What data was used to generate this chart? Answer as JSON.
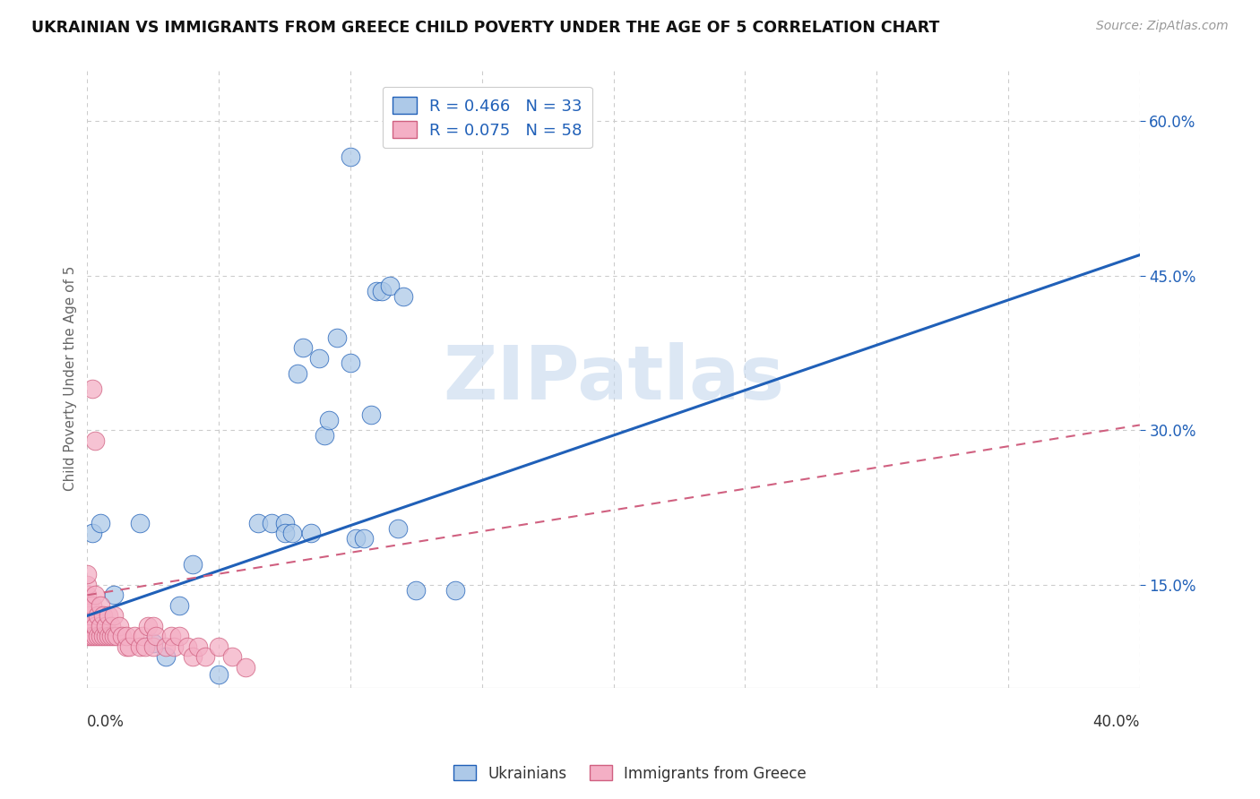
{
  "title": "UKRAINIAN VS IMMIGRANTS FROM GREECE CHILD POVERTY UNDER THE AGE OF 5 CORRELATION CHART",
  "source": "Source: ZipAtlas.com",
  "ylabel": "Child Poverty Under the Age of 5",
  "yaxis_ticks": [
    0.15,
    0.3,
    0.45,
    0.6
  ],
  "yaxis_labels": [
    "15.0%",
    "30.0%",
    "45.0%",
    "60.0%"
  ],
  "xaxis_ticks": [
    0.0,
    0.05,
    0.1,
    0.15,
    0.2,
    0.25,
    0.3,
    0.35,
    0.4
  ],
  "xmin": 0.0,
  "xmax": 0.4,
  "ymin": 0.05,
  "ymax": 0.65,
  "legend_entries": [
    {
      "label": "R = 0.466   N = 33",
      "color": "#a8c4e0"
    },
    {
      "label": "R = 0.075   N = 58",
      "color": "#f4b8c8"
    }
  ],
  "watermark": "ZIPatlas",
  "ukrainians_x": [
    0.03,
    0.05,
    0.065,
    0.07,
    0.075,
    0.075,
    0.078,
    0.08,
    0.082,
    0.085,
    0.088,
    0.09,
    0.092,
    0.095,
    0.1,
    0.102,
    0.105,
    0.108,
    0.11,
    0.112,
    0.115,
    0.118,
    0.12,
    0.125,
    0.002,
    0.005,
    0.01,
    0.02,
    0.025,
    0.035,
    0.04,
    0.14,
    0.1
  ],
  "ukrainians_y": [
    0.08,
    0.063,
    0.21,
    0.21,
    0.21,
    0.2,
    0.2,
    0.355,
    0.38,
    0.2,
    0.37,
    0.295,
    0.31,
    0.39,
    0.365,
    0.195,
    0.195,
    0.315,
    0.435,
    0.435,
    0.44,
    0.205,
    0.43,
    0.145,
    0.2,
    0.21,
    0.14,
    0.21,
    0.093,
    0.13,
    0.17,
    0.145,
    0.565
  ],
  "greece_x": [
    0.0,
    0.0,
    0.0,
    0.0,
    0.0,
    0.0,
    0.0,
    0.001,
    0.001,
    0.001,
    0.001,
    0.002,
    0.002,
    0.003,
    0.003,
    0.003,
    0.004,
    0.004,
    0.005,
    0.005,
    0.005,
    0.006,
    0.006,
    0.007,
    0.007,
    0.008,
    0.008,
    0.009,
    0.009,
    0.01,
    0.01,
    0.011,
    0.012,
    0.013,
    0.015,
    0.015,
    0.016,
    0.018,
    0.02,
    0.021,
    0.022,
    0.023,
    0.025,
    0.025,
    0.026,
    0.03,
    0.032,
    0.033,
    0.035,
    0.038,
    0.04,
    0.042,
    0.045,
    0.05,
    0.055,
    0.06,
    0.002,
    0.003
  ],
  "greece_y": [
    0.1,
    0.11,
    0.12,
    0.13,
    0.14,
    0.15,
    0.16,
    0.1,
    0.11,
    0.12,
    0.13,
    0.1,
    0.13,
    0.1,
    0.11,
    0.14,
    0.1,
    0.12,
    0.1,
    0.11,
    0.13,
    0.1,
    0.12,
    0.1,
    0.11,
    0.1,
    0.12,
    0.1,
    0.11,
    0.1,
    0.12,
    0.1,
    0.11,
    0.1,
    0.09,
    0.1,
    0.09,
    0.1,
    0.09,
    0.1,
    0.09,
    0.11,
    0.09,
    0.11,
    0.1,
    0.09,
    0.1,
    0.09,
    0.1,
    0.09,
    0.08,
    0.09,
    0.08,
    0.09,
    0.08,
    0.07,
    0.34,
    0.29
  ],
  "blue_line_x": [
    0.0,
    0.4
  ],
  "blue_line_y": [
    0.12,
    0.47
  ],
  "pink_line_x": [
    0.0,
    0.4
  ],
  "pink_line_y": [
    0.14,
    0.305
  ],
  "title_color": "#111111",
  "blue_scatter_color": "#adc9e8",
  "pink_scatter_color": "#f4afc5",
  "blue_line_color": "#2060b8",
  "pink_line_color": "#d06080",
  "grid_color": "#cccccc",
  "background_color": "#ffffff",
  "watermark_color": "#c5d8ee"
}
